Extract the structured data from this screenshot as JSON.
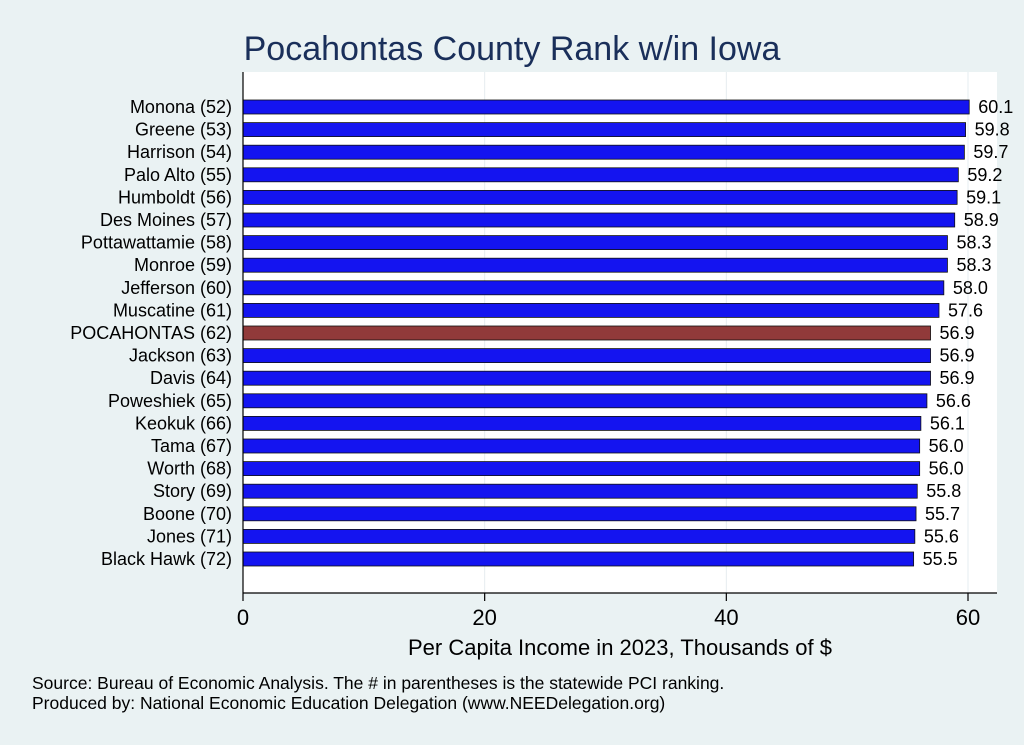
{
  "chart_data": {
    "type": "bar",
    "orientation": "horizontal",
    "title": "Pocahontas County Rank w/in Iowa",
    "xlabel": "Per Capita Income in 2023, Thousands of $",
    "ylabel": "",
    "xlim": [
      0,
      62
    ],
    "xticks": [
      0,
      20,
      40,
      60
    ],
    "grid": true,
    "categories": [
      "Monona (52)",
      "Greene (53)",
      "Harrison (54)",
      "Palo Alto (55)",
      "Humboldt (56)",
      "Des Moines (57)",
      "Pottawattamie (58)",
      "Monroe (59)",
      "Jefferson (60)",
      "Muscatine (61)",
      "POCAHONTAS (62)",
      "Jackson (63)",
      "Davis (64)",
      "Poweshiek (65)",
      "Keokuk (66)",
      "Tama (67)",
      "Worth (68)",
      "Story (69)",
      "Boone (70)",
      "Jones (71)",
      "Black Hawk (72)"
    ],
    "values": [
      60.1,
      59.8,
      59.7,
      59.2,
      59.1,
      58.9,
      58.3,
      58.3,
      58.0,
      57.6,
      56.9,
      56.9,
      56.9,
      56.6,
      56.1,
      56.0,
      56.0,
      55.8,
      55.7,
      55.6,
      55.5
    ],
    "value_labels": [
      "60.1",
      "59.8",
      "59.7",
      "59.2",
      "59.1",
      "58.9",
      "58.3",
      "58.3",
      "58.0",
      "57.6",
      "56.9",
      "56.9",
      "56.9",
      "56.6",
      "56.1",
      "56.0",
      "56.0",
      "55.8",
      "55.7",
      "55.6",
      "55.5"
    ],
    "highlight_index": 10,
    "colors": {
      "bar": "#1414f0",
      "highlight": "#913a3a",
      "plot_bg": "#ffffff",
      "page_bg": "#eaf2f3",
      "grid": "#e6ecf0",
      "title": "#1a2f5a"
    }
  },
  "footer": {
    "source": "Source: Bureau of Economic Analysis. The # in parentheses is the statewide PCI ranking.",
    "produced_by": "Produced by: National Economic Education Delegation (www.NEEDelegation.org)"
  }
}
